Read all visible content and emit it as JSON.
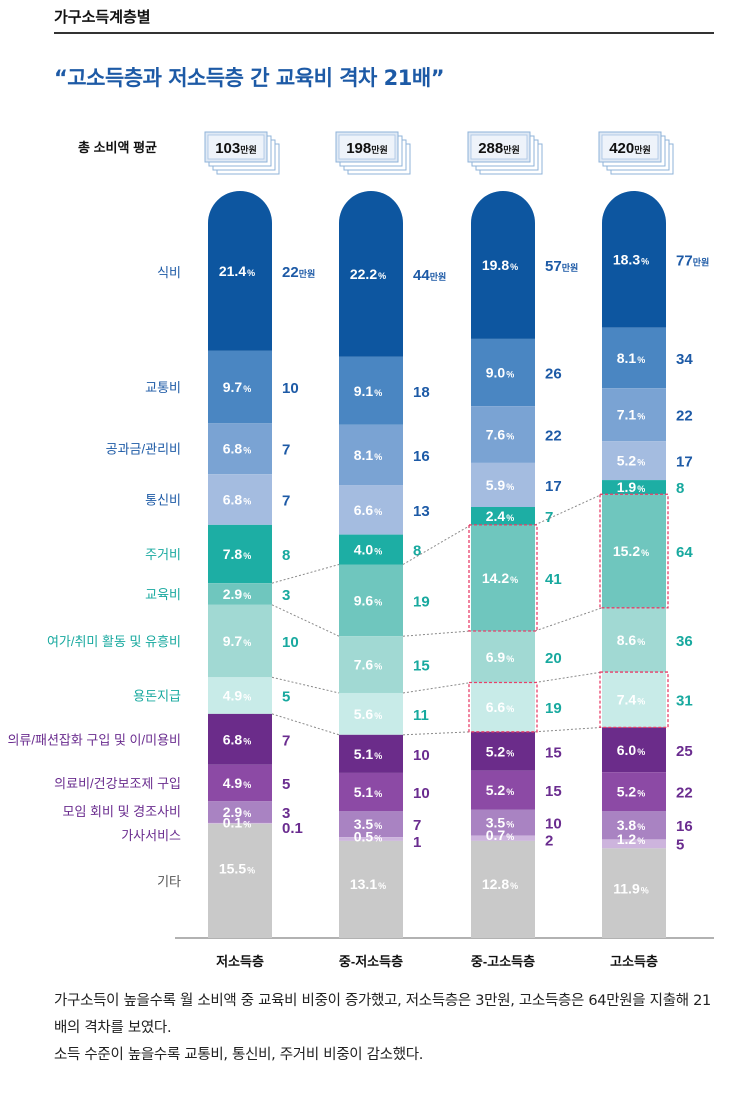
{
  "header": {
    "section_label": "가구소득계층별",
    "headline": "“고소득층과 저소득층 간 교육비 격차 21배”"
  },
  "caption": {
    "line1": "가구소득이 높을수록 월 소비액 중 교육비 비중이 증가했고, 저소득층은 3만원, 고소득층은 64만원을 지출해 21배의 격차를 보였다.",
    "line2": "소득 수준이 높을수록 교통비, 통신비, 주거비 비중이 감소했다."
  },
  "colors": {
    "식비": "#0d56a0",
    "교통비": "#4a86c2",
    "공과금/관리비": "#7aa3d3",
    "통신비": "#a4bce0",
    "주거비": "#1daea4",
    "교육비": "#6fc6be",
    "여가/취미 활동 및 유흥비": "#a1d9d3",
    "용돈지급": "#c8ebe8",
    "의류/패션잡화 구입 및 이/미용비": "#6b2c8a",
    "의료비/건강보조제 구입": "#8c4aa5",
    "모임 회비 및 경조사비": "#a983c2",
    "가사서비스": "#cdb4dd",
    "기타": "#c9c9c9",
    "text_blue": "#1d5aa6",
    "text_teal": "#18a99f",
    "text_purple": "#6a2c8f",
    "text_gray": "#555555",
    "highlight": "#e8406a"
  },
  "chart_data": {
    "type": "bar",
    "stacked": true,
    "total_label": "총 소비액 평균",
    "amount_unit": "만원",
    "categories": [
      "저소득층",
      "중-저소득층",
      "중-고소득층",
      "고소득층"
    ],
    "totals": [
      103,
      198,
      288,
      420
    ],
    "series": [
      {
        "name": "식비",
        "percent": [
          21.4,
          22.2,
          19.8,
          18.3
        ],
        "amount": [
          22,
          44,
          57,
          77
        ]
      },
      {
        "name": "교통비",
        "percent": [
          9.7,
          9.1,
          9.0,
          8.1
        ],
        "amount": [
          10,
          18,
          26,
          34
        ]
      },
      {
        "name": "공과금/관리비",
        "percent": [
          6.8,
          8.1,
          7.6,
          7.1
        ],
        "amount": [
          7,
          16,
          22,
          22
        ]
      },
      {
        "name": "통신비",
        "percent": [
          6.8,
          6.6,
          5.9,
          5.2
        ],
        "amount": [
          7,
          13,
          17,
          17
        ]
      },
      {
        "name": "주거비",
        "percent": [
          7.8,
          4.0,
          2.4,
          1.9
        ],
        "amount": [
          8,
          8,
          7,
          8
        ]
      },
      {
        "name": "교육비",
        "percent": [
          2.9,
          9.6,
          14.2,
          15.2
        ],
        "amount": [
          3,
          19,
          41,
          64
        ]
      },
      {
        "name": "여가/취미 활동 및 유흥비",
        "percent": [
          9.7,
          7.6,
          6.9,
          8.6
        ],
        "amount": [
          10,
          15,
          20,
          36
        ]
      },
      {
        "name": "용돈지급",
        "percent": [
          4.9,
          5.6,
          6.6,
          7.4
        ],
        "amount": [
          5,
          11,
          19,
          31
        ]
      },
      {
        "name": "의류/패션잡화 구입 및 이/미용비",
        "percent": [
          6.8,
          5.1,
          5.2,
          6.0
        ],
        "amount": [
          7,
          10,
          15,
          25
        ]
      },
      {
        "name": "의료비/건강보조제 구입",
        "percent": [
          4.9,
          5.1,
          5.2,
          5.2
        ],
        "amount": [
          5,
          10,
          15,
          22
        ]
      },
      {
        "name": "모임 회비 및 경조사비",
        "percent": [
          2.9,
          3.5,
          3.5,
          3.8
        ],
        "amount": [
          3,
          7,
          10,
          16
        ]
      },
      {
        "name": "가사서비스",
        "percent": [
          0.1,
          0.5,
          0.7,
          1.2
        ],
        "amount": [
          0.1,
          1,
          2,
          5
        ]
      },
      {
        "name": "기타",
        "percent": [
          15.5,
          13.1,
          12.8,
          11.9
        ],
        "amount": [
          null,
          null,
          null,
          null
        ]
      }
    ]
  }
}
